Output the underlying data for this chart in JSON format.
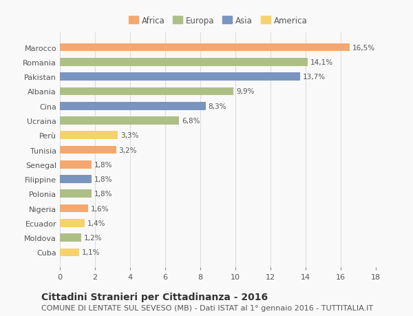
{
  "countries": [
    "Marocco",
    "Romania",
    "Pakistan",
    "Albania",
    "Cina",
    "Ucraina",
    "Perù",
    "Tunisia",
    "Senegal",
    "Filippine",
    "Polonia",
    "Nigeria",
    "Ecuador",
    "Moldova",
    "Cuba"
  ],
  "values": [
    16.5,
    14.1,
    13.7,
    9.9,
    8.3,
    6.8,
    3.3,
    3.2,
    1.8,
    1.8,
    1.8,
    1.6,
    1.4,
    1.2,
    1.1
  ],
  "labels": [
    "16,5%",
    "14,1%",
    "13,7%",
    "9,9%",
    "8,3%",
    "6,8%",
    "3,3%",
    "3,2%",
    "1,8%",
    "1,8%",
    "1,8%",
    "1,6%",
    "1,4%",
    "1,2%",
    "1,1%"
  ],
  "continents": [
    "Africa",
    "Europa",
    "Asia",
    "Europa",
    "Asia",
    "Europa",
    "America",
    "Africa",
    "Africa",
    "Asia",
    "Europa",
    "Africa",
    "America",
    "Europa",
    "America"
  ],
  "colors": {
    "Africa": "#F4A870",
    "Europa": "#AEBF85",
    "Asia": "#7A94C0",
    "America": "#F5D26A"
  },
  "legend_order": [
    "Africa",
    "Europa",
    "Asia",
    "America"
  ],
  "title": "Cittadini Stranieri per Cittadinanza - 2016",
  "subtitle": "COMUNE DI LENTATE SUL SEVESO (MB) - Dati ISTAT al 1° gennaio 2016 - TUTTITALIA.IT",
  "xlim": [
    0,
    18
  ],
  "xticks": [
    0,
    2,
    4,
    6,
    8,
    10,
    12,
    14,
    16,
    18
  ],
  "background_color": "#f9f9f9",
  "grid_color": "#dddddd",
  "title_fontsize": 10,
  "subtitle_fontsize": 8,
  "label_fontsize": 7.5,
  "tick_fontsize": 8,
  "legend_fontsize": 8.5
}
